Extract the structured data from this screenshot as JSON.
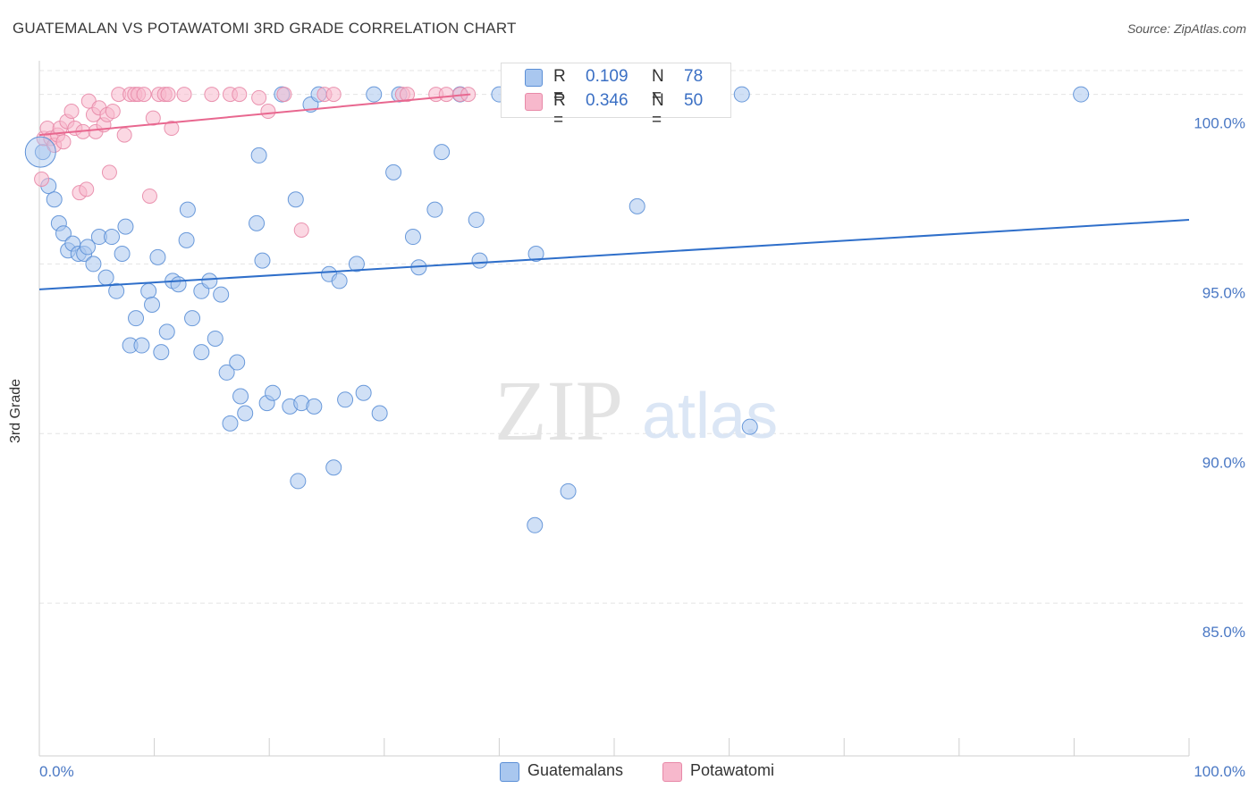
{
  "title": "GUATEMALAN VS POTAWATOMI 3RD GRADE CORRELATION CHART",
  "source": "Source: ZipAtlas.com",
  "watermark": {
    "zip": "ZIP",
    "atlas": "atlas"
  },
  "colors": {
    "blue_fill": "#a9c7ef",
    "blue_stroke": "#5b8fd6",
    "blue_line": "#2f6fca",
    "pink_fill": "#f7b8cc",
    "pink_stroke": "#e889a8",
    "pink_line": "#e8678f",
    "axis_text": "#4a78c4",
    "grid": "#e4e4e4"
  },
  "stats": [
    {
      "r_label": "R =",
      "r_value": "0.109",
      "n_label": "N =",
      "n_value": "78"
    },
    {
      "r_label": "R =",
      "r_value": "0.346",
      "n_label": "N =",
      "n_value": "50"
    }
  ],
  "chart_data": {
    "type": "scatter",
    "title": "GUATEMALAN VS POTAWATOMI 3RD GRADE CORRELATION CHART",
    "xlabel": "",
    "ylabel": "3rd Grade",
    "xlim": [
      0,
      100
    ],
    "ylim": [
      80.5,
      101.2
    ],
    "x_tick_labels": [
      "0.0%",
      "100.0%"
    ],
    "y_ticks": [
      85,
      90,
      95,
      100
    ],
    "y_tick_labels": [
      "85.0%",
      "90.0%",
      "95.0%",
      "100.0%"
    ],
    "grid": true,
    "legend": [
      "Guatemalans",
      "Potawatomi"
    ],
    "series": [
      {
        "name": "Guatemalans",
        "trend": {
          "x": [
            0,
            100
          ],
          "y": [
            94.25,
            96.3
          ]
        },
        "points": [
          [
            0.3,
            98.3
          ],
          [
            0.8,
            97.3
          ],
          [
            1.3,
            96.9
          ],
          [
            1.7,
            96.2
          ],
          [
            2.1,
            95.9
          ],
          [
            2.5,
            95.4
          ],
          [
            2.9,
            95.6
          ],
          [
            3.4,
            95.3
          ],
          [
            3.9,
            95.3
          ],
          [
            4.2,
            95.5
          ],
          [
            4.7,
            95.0
          ],
          [
            5.2,
            95.8
          ],
          [
            5.8,
            94.6
          ],
          [
            6.3,
            95.8
          ],
          [
            6.7,
            94.2
          ],
          [
            7.2,
            95.3
          ],
          [
            7.5,
            96.1
          ],
          [
            7.9,
            92.6
          ],
          [
            8.4,
            93.4
          ],
          [
            8.9,
            92.6
          ],
          [
            9.5,
            94.2
          ],
          [
            9.8,
            93.8
          ],
          [
            10.3,
            95.2
          ],
          [
            10.6,
            92.4
          ],
          [
            11.1,
            93.0
          ],
          [
            11.6,
            94.5
          ],
          [
            12.1,
            94.4
          ],
          [
            12.8,
            95.7
          ],
          [
            12.9,
            96.6
          ],
          [
            13.3,
            93.4
          ],
          [
            14.1,
            92.4
          ],
          [
            14.1,
            94.2
          ],
          [
            14.8,
            94.5
          ],
          [
            15.3,
            92.8
          ],
          [
            15.8,
            94.1
          ],
          [
            16.3,
            91.8
          ],
          [
            16.6,
            90.3
          ],
          [
            17.2,
            92.1
          ],
          [
            17.5,
            91.1
          ],
          [
            17.9,
            90.6
          ],
          [
            18.9,
            96.2
          ],
          [
            19.1,
            98.2
          ],
          [
            19.4,
            95.1
          ],
          [
            19.8,
            90.9
          ],
          [
            20.3,
            91.2
          ],
          [
            21.1,
            100.0
          ],
          [
            21.8,
            90.8
          ],
          [
            22.3,
            96.9
          ],
          [
            22.5,
            88.6
          ],
          [
            22.8,
            90.9
          ],
          [
            23.6,
            99.7
          ],
          [
            23.9,
            90.8
          ],
          [
            24.3,
            100.0
          ],
          [
            25.2,
            94.7
          ],
          [
            25.6,
            89.0
          ],
          [
            26.1,
            94.5
          ],
          [
            26.6,
            91.0
          ],
          [
            27.6,
            95.0
          ],
          [
            28.2,
            91.2
          ],
          [
            29.1,
            100.0
          ],
          [
            29.6,
            90.6
          ],
          [
            30.8,
            97.7
          ],
          [
            31.3,
            100.0
          ],
          [
            32.5,
            95.8
          ],
          [
            33.0,
            94.9
          ],
          [
            34.4,
            96.6
          ],
          [
            35.0,
            98.3
          ],
          [
            36.6,
            100.0
          ],
          [
            38.0,
            96.3
          ],
          [
            38.3,
            95.1
          ],
          [
            40.0,
            100.0
          ],
          [
            43.1,
            87.3
          ],
          [
            43.2,
            95.3
          ],
          [
            46.0,
            88.3
          ],
          [
            52.0,
            96.7
          ],
          [
            61.1,
            100.0
          ],
          [
            61.8,
            90.2
          ],
          [
            90.6,
            100.0
          ]
        ]
      },
      {
        "name": "Potawatomi",
        "trend": {
          "x": [
            0,
            37.5
          ],
          "y": [
            98.8,
            100.0
          ]
        },
        "points": [
          [
            0.2,
            97.5
          ],
          [
            0.4,
            98.7
          ],
          [
            0.7,
            99.0
          ],
          [
            1.0,
            98.7
          ],
          [
            1.3,
            98.5
          ],
          [
            1.6,
            98.8
          ],
          [
            1.8,
            99.0
          ],
          [
            2.1,
            98.6
          ],
          [
            2.4,
            99.2
          ],
          [
            2.8,
            99.5
          ],
          [
            3.1,
            99.0
          ],
          [
            3.5,
            97.1
          ],
          [
            3.8,
            98.9
          ],
          [
            4.1,
            97.2
          ],
          [
            4.3,
            99.8
          ],
          [
            4.7,
            99.4
          ],
          [
            4.9,
            98.9
          ],
          [
            5.2,
            99.6
          ],
          [
            5.6,
            99.1
          ],
          [
            5.9,
            99.4
          ],
          [
            6.1,
            97.7
          ],
          [
            6.4,
            99.5
          ],
          [
            6.9,
            100.0
          ],
          [
            7.4,
            98.8
          ],
          [
            7.9,
            100.0
          ],
          [
            8.3,
            100.0
          ],
          [
            8.6,
            100.0
          ],
          [
            9.1,
            100.0
          ],
          [
            9.6,
            97.0
          ],
          [
            9.9,
            99.3
          ],
          [
            10.4,
            100.0
          ],
          [
            10.9,
            100.0
          ],
          [
            11.2,
            100.0
          ],
          [
            11.5,
            99.0
          ],
          [
            12.6,
            100.0
          ],
          [
            15.0,
            100.0
          ],
          [
            16.6,
            100.0
          ],
          [
            17.4,
            100.0
          ],
          [
            19.1,
            99.9
          ],
          [
            19.9,
            99.5
          ],
          [
            21.3,
            100.0
          ],
          [
            22.8,
            96.0
          ],
          [
            24.8,
            100.0
          ],
          [
            25.6,
            100.0
          ],
          [
            31.6,
            100.0
          ],
          [
            32.0,
            100.0
          ],
          [
            34.5,
            100.0
          ],
          [
            35.4,
            100.0
          ],
          [
            36.6,
            100.0
          ],
          [
            37.3,
            100.0
          ]
        ]
      }
    ]
  }
}
